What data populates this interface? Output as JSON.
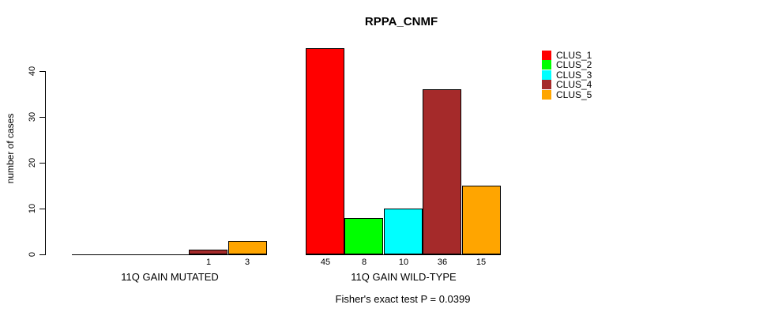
{
  "chart_data": {
    "type": "bar",
    "title": "RPPA_CNMF",
    "ylabel": "number of cases",
    "xlabel": "",
    "categories": [
      "11Q GAIN MUTATED",
      "11Q GAIN WILD-TYPE"
    ],
    "series": [
      {
        "name": "CLUS_1",
        "color": "#FF0000",
        "values": [
          0,
          45
        ]
      },
      {
        "name": "CLUS_2",
        "color": "#00FF00",
        "values": [
          0,
          8
        ]
      },
      {
        "name": "CLUS_3",
        "color": "#00FFFF",
        "values": [
          0,
          10
        ]
      },
      {
        "name": "CLUS_4",
        "color": "#A52A2A",
        "values": [
          1,
          36
        ]
      },
      {
        "name": "CLUS_5",
        "color": "#FFA500",
        "values": [
          3,
          15
        ]
      }
    ],
    "bar_value_labels": {
      "11Q GAIN MUTATED": [
        null,
        null,
        null,
        1,
        3
      ],
      "11Q GAIN WILD-TYPE": [
        45,
        8,
        10,
        36,
        15
      ]
    },
    "y_ticks": [
      0,
      10,
      20,
      30,
      40
    ],
    "ylim": [
      0,
      40
    ],
    "grid": false,
    "legend_position": "right",
    "legend_entries": [
      "CLUS_1",
      "CLUS_2",
      "CLUS_3",
      "CLUS_4",
      "CLUS_5"
    ],
    "annotation": "Fisher's exact test P = 0.0399",
    "axis_color": "#000000",
    "background_color": "#FFFFFF"
  }
}
